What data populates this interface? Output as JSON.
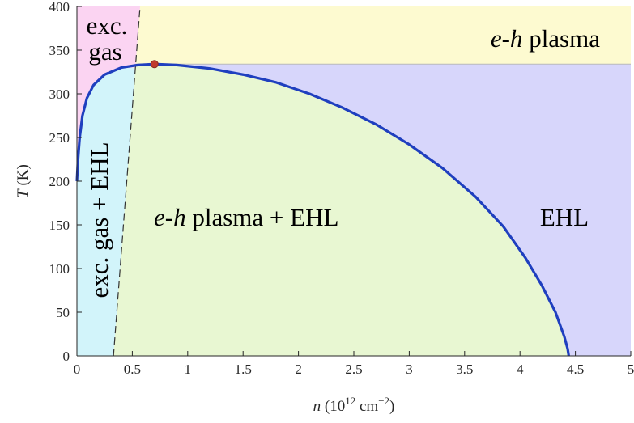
{
  "chart_data": {
    "type": "phase-diagram",
    "xlabel": {
      "var": "n",
      "unit": "(10",
      "exp": "12",
      "unit2": " cm",
      "exp2": "−2",
      "close": ")"
    },
    "ylabel": {
      "var": "T",
      "unit": " (K)"
    },
    "xlim": [
      0,
      5
    ],
    "ylim": [
      0,
      400
    ],
    "xticks": [
      "0",
      "0.5",
      "1",
      "1.5",
      "2",
      "2.5",
      "3",
      "3.5",
      "4",
      "4.5",
      "5"
    ],
    "yticks": [
      "0",
      "50",
      "100",
      "150",
      "200",
      "250",
      "300",
      "350",
      "400"
    ],
    "critical_point": {
      "n": 0.7,
      "T": 334,
      "color": "#c0392b"
    },
    "coexistence_curve": {
      "color": "#1f3fbf",
      "points": [
        [
          0.0,
          200
        ],
        [
          0.01,
          225
        ],
        [
          0.025,
          250
        ],
        [
          0.05,
          275
        ],
        [
          0.09,
          295
        ],
        [
          0.15,
          310
        ],
        [
          0.25,
          322
        ],
        [
          0.4,
          330
        ],
        [
          0.55,
          333
        ],
        [
          0.7,
          334
        ],
        [
          0.9,
          333
        ],
        [
          1.2,
          329
        ],
        [
          1.5,
          322
        ],
        [
          1.8,
          313
        ],
        [
          2.1,
          300
        ],
        [
          2.4,
          284
        ],
        [
          2.7,
          265
        ],
        [
          3.0,
          242
        ],
        [
          3.3,
          215
        ],
        [
          3.6,
          182
        ],
        [
          3.85,
          148
        ],
        [
          4.05,
          112
        ],
        [
          4.2,
          80
        ],
        [
          4.32,
          50
        ],
        [
          4.4,
          22
        ],
        [
          4.43,
          8
        ],
        [
          4.44,
          0
        ]
      ]
    },
    "dashed_boundary": {
      "from": [
        0.33,
        0
      ],
      "to": [
        0.57,
        400
      ]
    },
    "plasma_ceiling_T": 334,
    "regions": [
      {
        "name": "exciton-gas",
        "color": "#fbd4f2",
        "label_lines": [
          "exc.",
          "gas"
        ]
      },
      {
        "name": "eh-plasma",
        "color": "#fdfad0",
        "label_italic": "e-h",
        "label_rest": " plasma"
      },
      {
        "name": "exciton-gas-ehl",
        "color": "#d2f4fa",
        "label": "exc. gas + EHL"
      },
      {
        "name": "eh-plasma-ehl",
        "color": "#e8f7d2",
        "label_italic": "e-h",
        "label_rest": " plasma + EHL"
      },
      {
        "name": "ehl",
        "color": "#d7d6fb",
        "label": "EHL"
      }
    ]
  }
}
